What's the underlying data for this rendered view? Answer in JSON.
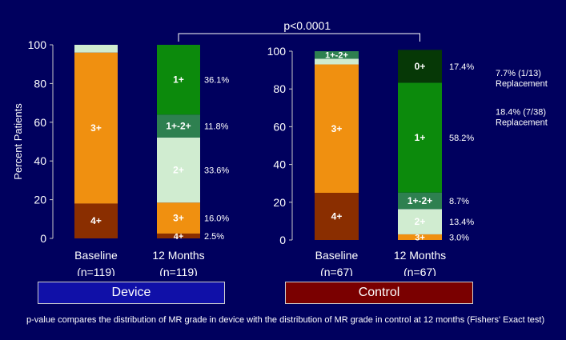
{
  "chart_data": [
    {
      "type": "bar",
      "stacked": true,
      "group": "Device",
      "ylabel": "Percent Patients",
      "ylim": [
        0,
        100
      ],
      "yticks": [
        0,
        20,
        40,
        60,
        80,
        100
      ],
      "grid": false,
      "bars": [
        {
          "label": "Baseline",
          "n_label": "(n=119)",
          "segments": [
            {
              "grade": "4+",
              "value": 18,
              "label": "4+",
              "color": "#8a2e00"
            },
            {
              "grade": "3+",
              "value": 78,
              "label": "3+",
              "color": "#f09010"
            },
            {
              "grade": "2+",
              "value": 4,
              "label": "",
              "color": "#d0ecd0"
            }
          ]
        },
        {
          "label": "12 Months",
          "n_label": "(n=119)",
          "segments": [
            {
              "grade": "4+",
              "value": 2.5,
              "label": "4+",
              "pct": "2.5%",
              "color": "#8a2e00"
            },
            {
              "grade": "3+",
              "value": 16.0,
              "label": "3+",
              "pct": "16.0%",
              "color": "#f09010"
            },
            {
              "grade": "2+",
              "value": 33.6,
              "label": "2+",
              "pct": "33.6%",
              "color": "#d0ecd0"
            },
            {
              "grade": "1+-2+",
              "value": 11.8,
              "label": "1+-2+",
              "pct": "11.8%",
              "color": "#2e8050"
            },
            {
              "grade": "1+",
              "value": 36.1,
              "label": "1+",
              "pct": "36.1%",
              "color": "#0c8a0c"
            }
          ]
        }
      ]
    },
    {
      "type": "bar",
      "stacked": true,
      "group": "Control",
      "ylim": [
        0,
        100
      ],
      "yticks": [
        0,
        20,
        40,
        60,
        80,
        100
      ],
      "grid": false,
      "bars": [
        {
          "label": "Baseline",
          "n_label": "(n=67)",
          "segments": [
            {
              "grade": "4+",
              "value": 25,
              "label": "4+",
              "color": "#8a2e00"
            },
            {
              "grade": "3+",
              "value": 68,
              "label": "3+",
              "color": "#f09010"
            },
            {
              "grade": "2+",
              "value": 3,
              "label": "",
              "color": "#d0ecd0"
            },
            {
              "grade": "1+-2+",
              "value": 4,
              "label": "1+-2+",
              "color": "#2e8050"
            }
          ]
        },
        {
          "label": "12 Months",
          "n_label": "(n=67)",
          "segments": [
            {
              "grade": "3+",
              "value": 3.0,
              "label": "3+",
              "pct": "3.0%",
              "color": "#f09010"
            },
            {
              "grade": "2+",
              "value": 13.4,
              "label": "2+",
              "pct": "13.4%",
              "color": "#d0ecd0"
            },
            {
              "grade": "1+-2+",
              "value": 8.7,
              "label": "1+-2+",
              "pct": "8.7%",
              "color": "#2e8050"
            },
            {
              "grade": "1+",
              "value": 58.2,
              "label": "1+",
              "pct": "58.2%",
              "color": "#0c8a0c"
            },
            {
              "grade": "0+",
              "value": 17.4,
              "label": "0+",
              "pct": "17.4%",
              "color": "#063806"
            }
          ]
        }
      ],
      "annotations": [
        {
          "text": "7.7% (1/13)",
          "text2": "Replacement",
          "at_value": 82.6
        },
        {
          "text": "18.4% (7/38)",
          "text2": "Replacement",
          "at_value": 62.0
        }
      ]
    }
  ],
  "pvalue_label": "p<0.0001",
  "group_labels": {
    "device": "Device",
    "control": "Control"
  },
  "footnote": "p-value compares the distribution of MR grade in device with the distribution of MR grade in control at 12 months (Fishers' Exact test)",
  "colors": {
    "background": "#00005e",
    "device_box": "#1010a8",
    "control_box": "#7a0000"
  }
}
